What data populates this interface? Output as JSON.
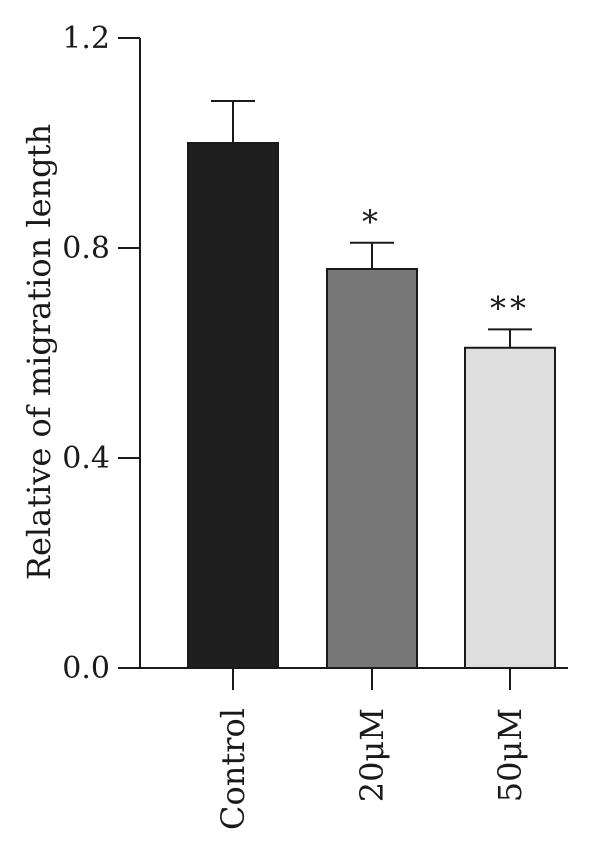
{
  "chart_data": {
    "type": "bar",
    "title": "",
    "xlabel": "",
    "ylabel": "Relative of migration length",
    "ylim": [
      0,
      1.2
    ],
    "yticks": [
      0.0,
      0.4,
      0.8,
      1.2
    ],
    "ytick_labels": [
      "0.0",
      "0.4",
      "0.8",
      "1.2"
    ],
    "categories": [
      "Control",
      "20μM",
      "50μM"
    ],
    "values": [
      1.0,
      0.76,
      0.61
    ],
    "errors": [
      0.08,
      0.05,
      0.035
    ],
    "significance": [
      "",
      "*",
      "**"
    ],
    "bar_colors": [
      "#1f1f1f",
      "#777777",
      "#dedede"
    ],
    "grid": false,
    "legend": "none"
  }
}
